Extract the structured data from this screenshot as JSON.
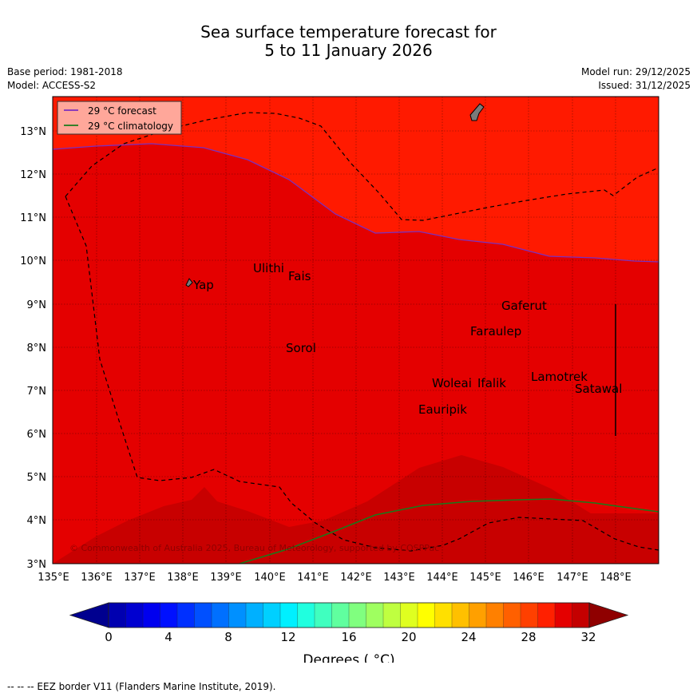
{
  "header": {
    "title_line1": "Sea surface temperature forecast for",
    "title_line2": "5 to 11 January 2026",
    "base_period": "Base period: 1981-2018",
    "model": "Model: ACCESS-S2",
    "model_run": "Model run: 29/12/2025",
    "issued": "Issued: 31/12/2025"
  },
  "map": {
    "lon_ticks": [
      "135°E",
      "136°E",
      "137°E",
      "138°E",
      "139°E",
      "140°E",
      "141°E",
      "142°E",
      "143°E",
      "144°E",
      "145°E",
      "146°E",
      "147°E",
      "148°E"
    ],
    "lat_ticks": [
      "13°N",
      "12°N",
      "11°N",
      "10°N",
      "9°N",
      "8°N",
      "7°N",
      "6°N",
      "5°N",
      "4°N",
      "3°N"
    ],
    "legend": {
      "forecast": "29 °C  forecast",
      "climatology": "29 °C  climatology"
    },
    "places": [
      {
        "name": "Yap"
      },
      {
        "name": "Ulithi"
      },
      {
        "name": "Fais"
      },
      {
        "name": "Sorol"
      },
      {
        "name": "Gaferut"
      },
      {
        "name": "Faraulep"
      },
      {
        "name": "Woleai"
      },
      {
        "name": "Ifalik"
      },
      {
        "name": "Lamotrek"
      },
      {
        "name": "Satawal"
      },
      {
        "name": "Eauripik"
      }
    ],
    "copyright": "© Commonwealth of Australia 2025, Bureau of Meteorology, supported by COSPPac",
    "colors": {
      "above_29": "#ff1a00",
      "band_29_30": "#e40000",
      "band_30_31": "#c80000",
      "forecast_line": "#7b2fbe",
      "climatology_line": "#1a7a1a",
      "legend_bg": "#ffa79a"
    }
  },
  "colorbar": {
    "tick_labels": [
      "0",
      "4",
      "8",
      "12",
      "16",
      "20",
      "24",
      "28",
      "32"
    ],
    "label": "Degrees ( °C)",
    "colors": [
      "#00008f",
      "#0000b0",
      "#0000d0",
      "#0000ef",
      "#0010ff",
      "#0030ff",
      "#0050ff",
      "#0070ff",
      "#0090ff",
      "#00b0ff",
      "#00d0ff",
      "#00f0ff",
      "#20ffdf",
      "#40ffbf",
      "#60ff9f",
      "#80ff7f",
      "#9fff60",
      "#bfff40",
      "#dfff20",
      "#ffff00",
      "#ffe000",
      "#ffc000",
      "#ffa000",
      "#ff8000",
      "#ff6000",
      "#ff4000",
      "#ff2000",
      "#e40000",
      "#c40000",
      "#8f0000"
    ]
  },
  "footer": {
    "eez_note": "--  --  -- EEZ border V11 (Flanders Marine Institute, 2019)."
  }
}
